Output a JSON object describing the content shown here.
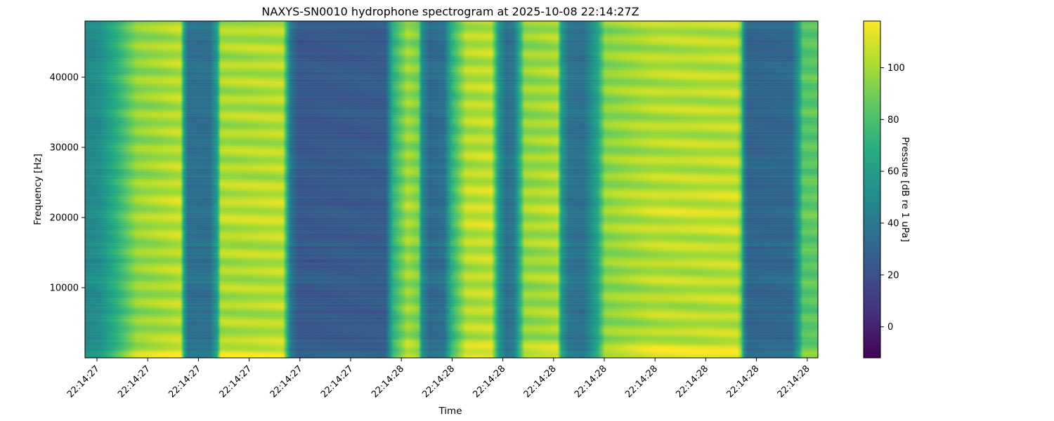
{
  "chart_data": {
    "type": "heatmap",
    "title": "NAXYS-SN0010 hydrophone spectrogram at 2025-10-08 22:14:27Z",
    "xlabel": "Time",
    "ylabel": "Frequency [Hz]",
    "colorbar_label": "Pressure [dB re 1 uPa]",
    "colormap": "viridis",
    "x_tick_labels": [
      "22:14:27",
      "22:14:27",
      "22:14:27",
      "22:14:27",
      "22:14:27",
      "22:14:27",
      "22:14:28",
      "22:14:28",
      "22:14:28",
      "22:14:28",
      "22:14:28",
      "22:14:28",
      "22:14:28",
      "22:14:28",
      "22:14:28"
    ],
    "ylim": [
      0,
      48000
    ],
    "y_ticks": [
      10000,
      20000,
      30000,
      40000
    ],
    "color_range": [
      -12,
      118
    ],
    "colorbar_ticks": [
      0,
      20,
      40,
      60,
      80,
      100
    ],
    "time_profile": [
      [
        0.0,
        48
      ],
      [
        0.02,
        52
      ],
      [
        0.04,
        68
      ],
      [
        0.07,
        95
      ],
      [
        0.13,
        103
      ],
      [
        0.135,
        60
      ],
      [
        0.14,
        36
      ],
      [
        0.17,
        36
      ],
      [
        0.18,
        60
      ],
      [
        0.185,
        100
      ],
      [
        0.27,
        103
      ],
      [
        0.28,
        40
      ],
      [
        0.29,
        24
      ],
      [
        0.41,
        26
      ],
      [
        0.42,
        70
      ],
      [
        0.44,
        98
      ],
      [
        0.455,
        90
      ],
      [
        0.46,
        50
      ],
      [
        0.47,
        32
      ],
      [
        0.49,
        36
      ],
      [
        0.5,
        70
      ],
      [
        0.52,
        102
      ],
      [
        0.555,
        104
      ],
      [
        0.565,
        55
      ],
      [
        0.575,
        35
      ],
      [
        0.585,
        40
      ],
      [
        0.595,
        75
      ],
      [
        0.6,
        96
      ],
      [
        0.645,
        100
      ],
      [
        0.65,
        60
      ],
      [
        0.66,
        38
      ],
      [
        0.68,
        36
      ],
      [
        0.69,
        50
      ],
      [
        0.7,
        65
      ],
      [
        0.71,
        94
      ],
      [
        0.775,
        102
      ],
      [
        0.89,
        104
      ],
      [
        0.895,
        90
      ],
      [
        0.9,
        45
      ],
      [
        0.905,
        30
      ],
      [
        0.965,
        32
      ],
      [
        0.975,
        60
      ],
      [
        0.98,
        82
      ],
      [
        1.0,
        84
      ]
    ]
  }
}
